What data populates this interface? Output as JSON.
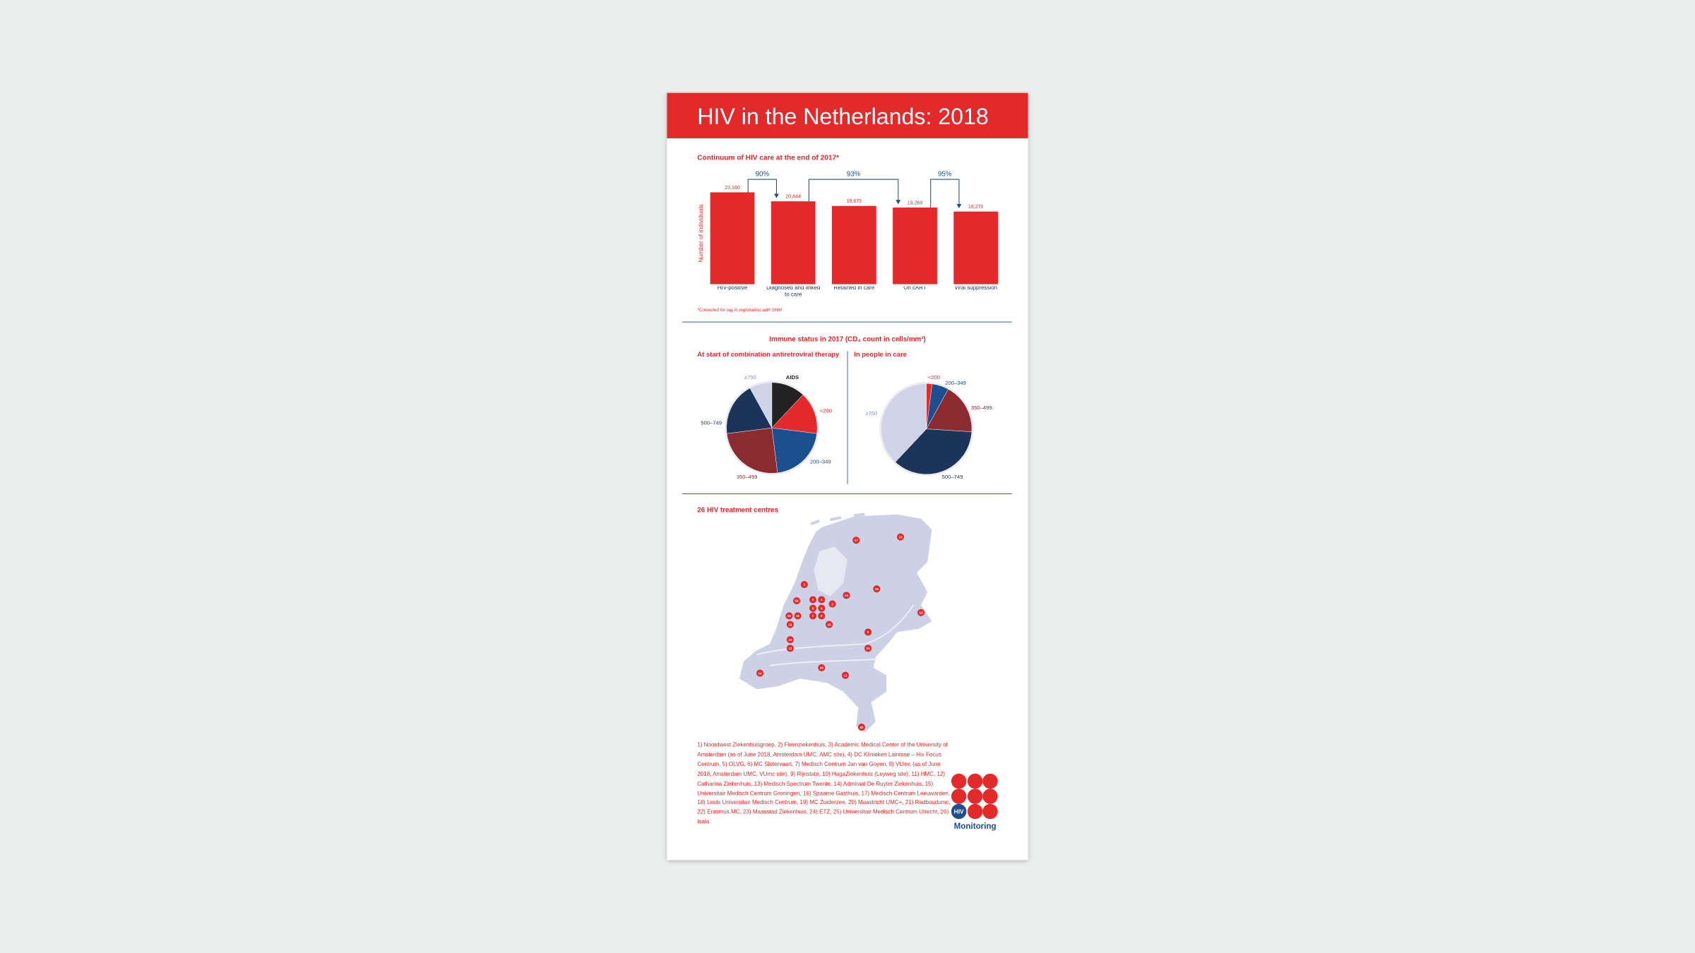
{
  "header": {
    "title": "HIV in the Netherlands: 2018"
  },
  "continuum": {
    "title": "Continuum of HIV care at the end of 2017*",
    "chart_data": {
      "type": "bar",
      "y_label": "Number of individuals",
      "categories": [
        "HIV-positive",
        "Diagnosed and linked to care",
        "Retained in care",
        "On cART",
        "Viral suppression"
      ],
      "values": [
        23100,
        20844,
        19675,
        19269,
        18270
      ],
      "value_labels": [
        "23,100",
        "20,844",
        "19,675",
        "19,269",
        "18,270"
      ],
      "color": "#e3292a",
      "annotations": [
        {
          "value": 90,
          "label": "90%"
        },
        {
          "value": 93,
          "label": "93%"
        },
        {
          "value": 95,
          "label": "95%"
        }
      ]
    },
    "footnote": "*Corrected for lag in registration with SHM."
  },
  "immune": {
    "title": "Immune status in 2017 (CD₄ count in cells/mm³)",
    "charts": [
      {
        "type": "pie",
        "title": "At start of combination antiretroviral therapy",
        "categories": [
          "AIDS",
          "<200",
          "200–349",
          "350–499",
          "500–749",
          "≥750"
        ],
        "values": [
          12,
          15,
          21,
          25,
          19,
          8
        ],
        "colors": [
          "#222222",
          "#e3292a",
          "#1b4f8f",
          "#8b2a2f",
          "#1c3459",
          "#cfd3e8"
        ]
      },
      {
        "type": "pie",
        "title": "In people in care",
        "categories": [
          "<200",
          "200–349",
          "350–499",
          "500–749",
          "≥750"
        ],
        "values": [
          2,
          6,
          18,
          36,
          38
        ],
        "colors": [
          "#e3292a",
          "#1b4f8f",
          "#8b2a2f",
          "#1c3459",
          "#cfd3e8"
        ]
      }
    ]
  },
  "centres": {
    "title": "26 HIV treatment centres",
    "markers": [
      "17",
      "15",
      "1",
      "19",
      "26",
      "16",
      "3",
      "4",
      "5",
      "6",
      "7",
      "8",
      "2",
      "10",
      "11",
      "18",
      "25",
      "13",
      "9",
      "21",
      "22",
      "23",
      "14",
      "24",
      "12",
      "20"
    ],
    "list": "1) Noordwest Ziekenhuisgroep, 2) Flevoziekenhuis, 3) Academic Medical Center of the University of Amsterdam (as of June 2018, Amsterdam UMC, AMC site), 4) DC Klinieken Lairesse – Hiv Focus Centrum, 5) OLVG, 6) MC Slotervaart, 7) Medisch Centrum Jan van Goyen, 8) VUmc (as of June 2018, Amsterdam UMC, VUmc site), 9) Rijnstate, 10) HagaZiekenhuis (Leyweg site), 11) HMC, 12) Catharina Ziekenhuis, 13) Medisch Spectrum Twente, 14) Admiraal De Ruyter Ziekenhuis, 15) Universitair Medisch Centrum Groningen, 16) Spaarne Gasthuis, 17) Medisch Centrum Leeuwarden, 18) Leids Universitair Medisch Centrum, 19) MC Zuiderzee, 20) Maastricht UMC+, 21) Radboudumc, 22) Erasmus MC, 23) Maasstad Ziekenhuis, 24) ETZ, 25) Universitair Medisch Centrum Utrecht, 26) Isala"
  },
  "logo": {
    "mark": "HIV",
    "name": "Monitoring"
  }
}
